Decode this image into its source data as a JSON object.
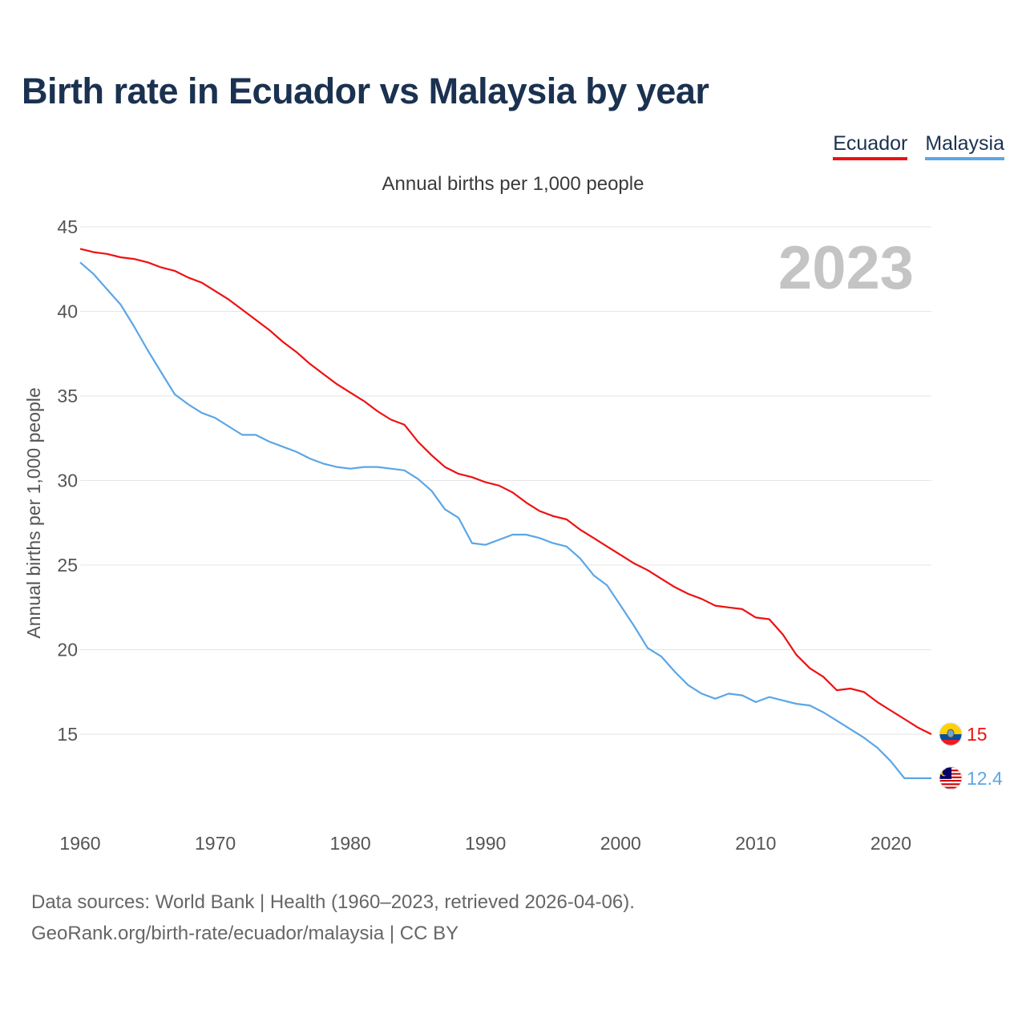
{
  "title": "Birth rate in Ecuador vs Malaysia by year",
  "legend": [
    {
      "label": "Ecuador",
      "color": "#ee1111"
    },
    {
      "label": "Malaysia",
      "color": "#5ba6e6"
    }
  ],
  "subtitle": "Annual births per 1,000 people",
  "source": {
    "line1": "Data sources: World Bank | Health (1960–2023, retrieved 2026-04-06).",
    "line2": "GeoRank.org/birth-rate/ecuador/malaysia | CC BY"
  },
  "chart_data": {
    "type": "line",
    "title": "Birth rate in Ecuador vs Malaysia by year",
    "xlabel": "",
    "ylabel": "Annual births per 1,000 people",
    "xlim": [
      1960,
      2023
    ],
    "ylim": [
      10.5,
      45
    ],
    "grid": true,
    "year_label": "2023",
    "x_ticks": [
      1960,
      1970,
      1980,
      1990,
      2000,
      2010,
      2020
    ],
    "y_ticks": [
      15,
      20,
      25,
      30,
      35,
      40,
      45
    ],
    "x": [
      1960,
      1961,
      1962,
      1963,
      1964,
      1965,
      1966,
      1967,
      1968,
      1969,
      1970,
      1971,
      1972,
      1973,
      1974,
      1975,
      1976,
      1977,
      1978,
      1979,
      1980,
      1981,
      1982,
      1983,
      1984,
      1985,
      1986,
      1987,
      1988,
      1989,
      1990,
      1991,
      1992,
      1993,
      1994,
      1995,
      1996,
      1997,
      1998,
      1999,
      2000,
      2001,
      2002,
      2003,
      2004,
      2005,
      2006,
      2007,
      2008,
      2009,
      2010,
      2011,
      2012,
      2013,
      2014,
      2015,
      2016,
      2017,
      2018,
      2019,
      2020,
      2021,
      2022,
      2023
    ],
    "series": [
      {
        "name": "Ecuador",
        "color": "#ee1111",
        "end_label": "15",
        "flag": "ecuador-flag-icon",
        "values": [
          43.7,
          43.5,
          43.4,
          43.2,
          43.1,
          42.9,
          42.6,
          42.4,
          42.0,
          41.7,
          41.2,
          40.7,
          40.1,
          39.5,
          38.9,
          38.2,
          37.6,
          36.9,
          36.3,
          35.7,
          35.2,
          34.7,
          34.1,
          33.6,
          33.3,
          32.3,
          31.5,
          30.8,
          30.4,
          30.2,
          29.9,
          29.7,
          29.3,
          28.7,
          28.2,
          27.9,
          27.7,
          27.1,
          26.6,
          26.1,
          25.6,
          25.1,
          24.7,
          24.2,
          23.7,
          23.3,
          23.0,
          22.6,
          22.5,
          22.4,
          21.9,
          21.8,
          20.9,
          19.7,
          18.9,
          18.4,
          17.6,
          17.7,
          17.5,
          16.9,
          16.4,
          15.9,
          15.4,
          15.0
        ]
      },
      {
        "name": "Malaysia",
        "color": "#5ba6e6",
        "end_label": "12.4",
        "flag": "malaysia-flag-icon",
        "values": [
          42.9,
          42.2,
          41.3,
          40.4,
          39.1,
          37.7,
          36.4,
          35.1,
          34.5,
          34.0,
          33.7,
          33.2,
          32.7,
          32.7,
          32.3,
          32.0,
          31.7,
          31.3,
          31.0,
          30.8,
          30.7,
          30.8,
          30.8,
          30.7,
          30.6,
          30.1,
          29.4,
          28.3,
          27.8,
          26.3,
          26.2,
          26.5,
          26.8,
          26.8,
          26.6,
          26.3,
          26.1,
          25.4,
          24.4,
          23.8,
          22.6,
          21.4,
          20.1,
          19.6,
          18.7,
          17.9,
          17.4,
          17.1,
          17.4,
          17.3,
          16.9,
          17.2,
          17.0,
          16.8,
          16.7,
          16.3,
          15.8,
          15.3,
          14.8,
          14.2,
          13.4,
          12.4,
          12.4,
          12.4
        ]
      }
    ]
  }
}
